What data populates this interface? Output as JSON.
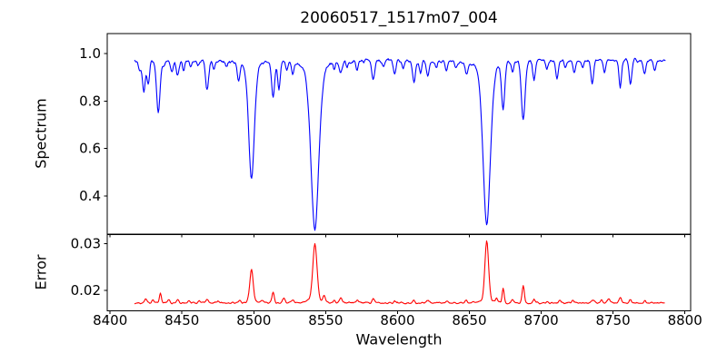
{
  "figure": {
    "title": "20060517_1517m07_004",
    "background": "#ffffff",
    "frame_color": "#000000"
  },
  "axes": {
    "xlabel": "Wavelength",
    "xlim": [
      8398,
      8804
    ],
    "xticks": [
      8400,
      8450,
      8500,
      8550,
      8600,
      8650,
      8700,
      8750,
      8800
    ],
    "xtick_labels": [
      "8400",
      "8450",
      "8500",
      "8550",
      "8600",
      "8650",
      "8700",
      "8750",
      "8800"
    ],
    "grid": false,
    "legend": "none",
    "layout": "two stacked subplots sharing x-axis, no vertical gap"
  },
  "chart_data": [
    {
      "type": "line",
      "title": "20060517_1517m07_004",
      "ylabel": "Spectrum",
      "xlabel": "Wavelength",
      "color": "#0000ff",
      "ylim": [
        0.239,
        1.085
      ],
      "yticks": [
        0.4,
        0.6,
        0.8,
        1.0
      ],
      "ytick_labels": [
        "0.4",
        "0.6",
        "0.8",
        "1.0"
      ],
      "x_start": 8417,
      "x_end": 8786.5,
      "sample_step": 0.5,
      "continuum": 0.972,
      "noise_amplitude": 0.011,
      "noise_seed": 20060517,
      "lines_format": "[center_wavelength, depth_below_continuum, sigma, broad_wings_flag]",
      "absorption_lines": [
        [
          8420.5,
          0.042,
          0.9,
          0
        ],
        [
          8423.5,
          0.132,
          1.0,
          0
        ],
        [
          8426.5,
          0.1,
          0.9,
          0
        ],
        [
          8433.5,
          0.222,
          1.2,
          0
        ],
        [
          8437.5,
          0.03,
          0.8,
          0
        ],
        [
          8443,
          0.042,
          0.9,
          0
        ],
        [
          8447,
          0.062,
          0.9,
          0
        ],
        [
          8451,
          0.042,
          0.8,
          0
        ],
        [
          8456,
          0.032,
          0.8,
          0
        ],
        [
          8461,
          0.025,
          0.8,
          0
        ],
        [
          8467.5,
          0.122,
          1.1,
          0
        ],
        [
          8472,
          0.032,
          0.8,
          0
        ],
        [
          8481,
          0.022,
          0.8,
          0
        ],
        [
          8489.5,
          0.072,
          1.0,
          0
        ],
        [
          8498.4,
          0.497,
          2.0,
          1
        ],
        [
          8513.5,
          0.152,
          1.0,
          0
        ],
        [
          8517.5,
          0.112,
          0.9,
          0
        ],
        [
          8523,
          0.03,
          0.8,
          0
        ],
        [
          8527,
          0.05,
          0.9,
          0
        ],
        [
          8542.5,
          0.712,
          2.8,
          1
        ],
        [
          8556,
          0.03,
          0.8,
          0
        ],
        [
          8560.5,
          0.045,
          0.9,
          0
        ],
        [
          8565,
          0.03,
          0.8,
          0
        ],
        [
          8572,
          0.035,
          0.8,
          0
        ],
        [
          8583,
          0.082,
          1.0,
          0
        ],
        [
          8590,
          0.03,
          0.8,
          0
        ],
        [
          8598,
          0.062,
          0.9,
          0
        ],
        [
          8604,
          0.03,
          0.8,
          0
        ],
        [
          8611.5,
          0.09,
          1.0,
          0
        ],
        [
          8616,
          0.05,
          0.8,
          0
        ],
        [
          8621,
          0.065,
          0.9,
          0
        ],
        [
          8627,
          0.03,
          0.8,
          0
        ],
        [
          8634,
          0.04,
          0.8,
          0
        ],
        [
          8641,
          0.03,
          0.8,
          0
        ],
        [
          8648,
          0.05,
          0.9,
          0
        ],
        [
          8662.1,
          0.692,
          2.6,
          1
        ],
        [
          8673.5,
          0.2,
          1.1,
          0
        ],
        [
          8680,
          0.04,
          0.8,
          0
        ],
        [
          8687.5,
          0.245,
          1.3,
          0
        ],
        [
          8695,
          0.08,
          0.9,
          0
        ],
        [
          8704,
          0.03,
          0.8,
          0
        ],
        [
          8711,
          0.08,
          0.9,
          0
        ],
        [
          8717,
          0.035,
          0.8,
          0
        ],
        [
          8723,
          0.05,
          0.9,
          0
        ],
        [
          8729,
          0.03,
          0.8,
          0
        ],
        [
          8735.5,
          0.09,
          0.9,
          0
        ],
        [
          8744,
          0.05,
          0.8,
          0
        ],
        [
          8755,
          0.11,
          0.9,
          0
        ],
        [
          8762,
          0.1,
          0.9,
          0
        ],
        [
          8772,
          0.05,
          0.9,
          0
        ],
        [
          8779,
          0.04,
          0.8,
          0
        ]
      ],
      "key_features": "Ca II triplet absorption: 8498 A reaching 0.475, 8542 A reaching 0.26, 8662 A reaching 0.28; continuum ~0.97"
    },
    {
      "type": "line",
      "ylabel": "Error",
      "xlabel": "Wavelength",
      "color": "#ff0000",
      "ylim": [
        0.0157,
        0.0319
      ],
      "yticks": [
        0.02,
        0.03
      ],
      "ytick_labels": [
        "0.02",
        "0.03"
      ],
      "x_start": 8417,
      "x_end": 8786,
      "sample_step": 0.5,
      "baseline": 0.0174,
      "noise_amplitude": 0.00028,
      "noise_seed": 8662,
      "lines_format": "[center_wavelength, height_above_baseline, sigma, broad_wings_flag]",
      "peaks": [
        [
          8425,
          0.0008,
          0.8,
          0
        ],
        [
          8430,
          0.0007,
          0.7,
          0
        ],
        [
          8435,
          0.0022,
          0.7,
          0
        ],
        [
          8441,
          0.0006,
          0.7,
          0
        ],
        [
          8447,
          0.0007,
          0.8,
          0
        ],
        [
          8455,
          0.0004,
          0.7,
          0
        ],
        [
          8462,
          0.0005,
          0.7,
          0
        ],
        [
          8467.5,
          0.0008,
          0.9,
          0
        ],
        [
          8475,
          0.0004,
          0.7,
          0
        ],
        [
          8490,
          0.0005,
          0.7,
          0
        ],
        [
          8498.4,
          0.0072,
          1.2,
          1
        ],
        [
          8506,
          0.0004,
          0.7,
          0
        ],
        [
          8513.5,
          0.0022,
          0.8,
          0
        ],
        [
          8521,
          0.001,
          0.9,
          0
        ],
        [
          8527,
          0.0006,
          0.8,
          0
        ],
        [
          8542.5,
          0.0127,
          1.5,
          1
        ],
        [
          8549,
          0.0012,
          0.8,
          0
        ],
        [
          8556,
          0.0005,
          0.7,
          0
        ],
        [
          8560.5,
          0.001,
          0.8,
          0
        ],
        [
          8572,
          0.0005,
          0.7,
          0
        ],
        [
          8583,
          0.0008,
          0.8,
          0
        ],
        [
          8598,
          0.0005,
          0.7,
          0
        ],
        [
          8611,
          0.0006,
          0.8,
          0
        ],
        [
          8621,
          0.0005,
          0.7,
          0
        ],
        [
          8634,
          0.0004,
          0.7,
          0
        ],
        [
          8648,
          0.0005,
          0.7,
          0
        ],
        [
          8662.1,
          0.0132,
          1.3,
          1
        ],
        [
          8669,
          0.0008,
          0.7,
          0
        ],
        [
          8673.5,
          0.003,
          0.7,
          0
        ],
        [
          8680,
          0.0006,
          0.7,
          0
        ],
        [
          8687.5,
          0.0036,
          0.8,
          0
        ],
        [
          8695,
          0.0007,
          0.7,
          0
        ],
        [
          8704,
          0.0004,
          0.7,
          0
        ],
        [
          8713,
          0.0005,
          0.7,
          0
        ],
        [
          8722,
          0.0005,
          0.7,
          0
        ],
        [
          8736,
          0.0006,
          0.8,
          0
        ],
        [
          8742,
          0.0007,
          0.7,
          0
        ],
        [
          8747,
          0.0008,
          0.8,
          0
        ],
        [
          8755,
          0.0011,
          0.8,
          0
        ],
        [
          8762,
          0.0007,
          0.7,
          0
        ],
        [
          8772,
          0.0005,
          0.7,
          0
        ]
      ],
      "key_features": "error baseline ~0.0175 with spikes at Ca II lines: 8498 A -> 0.0245, 8542 A -> 0.030, 8662 A -> 0.0305"
    }
  ]
}
